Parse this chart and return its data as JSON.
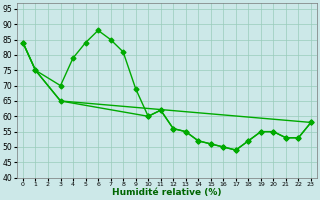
{
  "title": "",
  "xlabel": "Humidité relative (%)",
  "ylabel": "",
  "bg_color": "#cce8e8",
  "grid_color": "#99ccbb",
  "line_color": "#00aa00",
  "xlim": [
    -0.5,
    23.5
  ],
  "ylim": [
    40,
    97
  ],
  "yticks": [
    40,
    45,
    50,
    55,
    60,
    65,
    70,
    75,
    80,
    85,
    90,
    95
  ],
  "xticks": [
    0,
    1,
    2,
    3,
    4,
    5,
    6,
    7,
    8,
    9,
    10,
    11,
    12,
    13,
    14,
    15,
    16,
    17,
    18,
    19,
    20,
    21,
    22,
    23
  ],
  "line1_x": [
    0,
    1,
    3,
    4,
    5,
    6,
    7,
    8,
    9,
    10,
    11,
    12,
    13,
    14,
    15,
    16,
    17,
    18,
    19,
    20,
    21,
    22,
    23
  ],
  "line1_y": [
    84,
    75,
    70,
    79,
    84,
    88,
    85,
    81,
    69,
    60,
    62,
    56,
    55,
    52,
    51,
    50,
    49,
    52,
    55,
    55,
    53,
    53,
    58
  ],
  "line2_x": [
    0,
    1,
    3,
    10,
    11,
    12,
    13,
    14,
    15,
    16,
    17,
    18,
    19,
    20,
    21,
    22,
    23
  ],
  "line2_y": [
    84,
    75,
    65,
    60,
    62,
    56,
    55,
    52,
    51,
    50,
    49,
    52,
    55,
    55,
    53,
    53,
    58
  ],
  "line3_x": [
    0,
    1,
    3,
    23
  ],
  "line3_y": [
    84,
    75,
    65,
    58
  ],
  "marker": "D",
  "marker_size": 2.5,
  "line_width": 1.0
}
